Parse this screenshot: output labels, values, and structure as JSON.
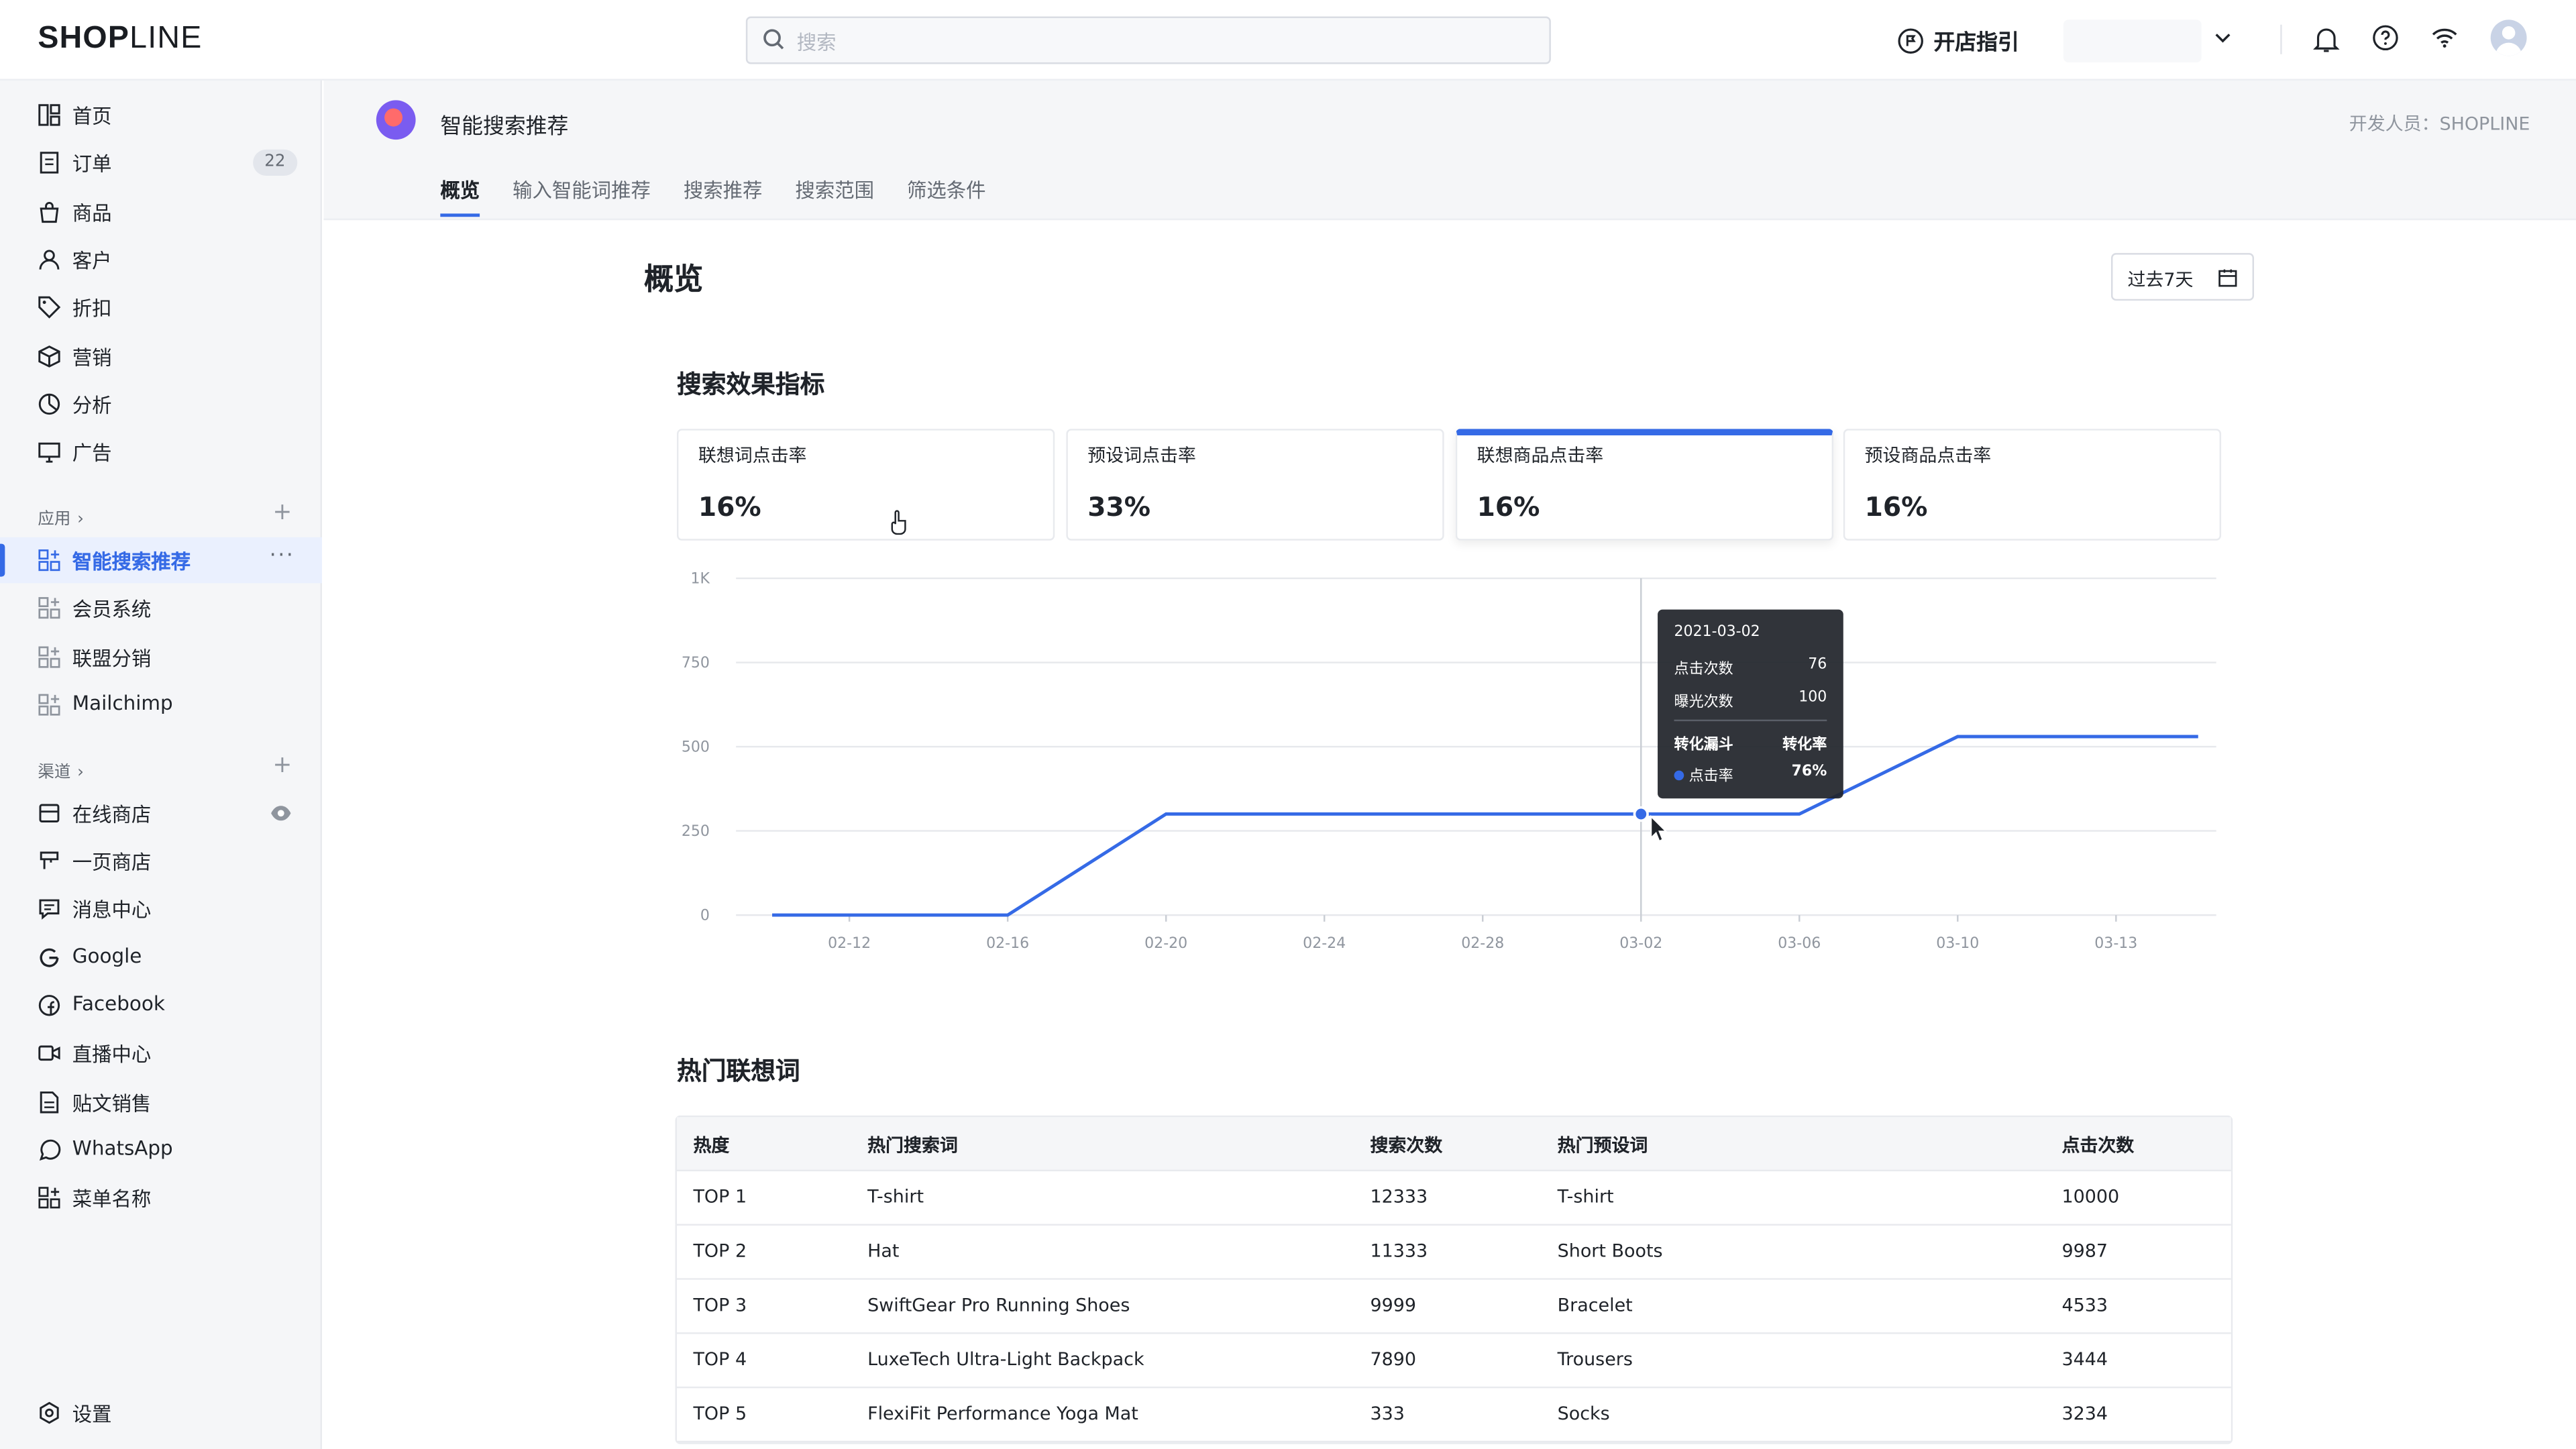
{
  "topbar": {
    "logo_bold": "SHOP",
    "logo_thin": "LINE",
    "search_placeholder": "搜索",
    "guide_label": "开店指引"
  },
  "sidebar": {
    "main_items": [
      {
        "label": "首页",
        "icon": "dashboard-icon"
      },
      {
        "label": "订单",
        "icon": "order-icon",
        "badge": "22"
      },
      {
        "label": "商品",
        "icon": "bag-icon"
      },
      {
        "label": "客户",
        "icon": "user-icon"
      },
      {
        "label": "折扣",
        "icon": "tag-icon"
      },
      {
        "label": "营销",
        "icon": "cube-icon"
      },
      {
        "label": "分析",
        "icon": "pie-icon"
      },
      {
        "label": "广告",
        "icon": "ads-icon"
      }
    ],
    "apps_section": "应用",
    "app_items": [
      {
        "label": "智能搜索推荐",
        "active": true
      },
      {
        "label": "会员系统"
      },
      {
        "label": "联盟分销"
      },
      {
        "label": "Mailchimp"
      }
    ],
    "channels_section": "渠道",
    "channel_items": [
      {
        "label": "在线商店",
        "icon": "store-icon"
      },
      {
        "label": "一页商店",
        "icon": "page-store-icon"
      },
      {
        "label": "消息中心",
        "icon": "message-icon"
      },
      {
        "label": "Google",
        "icon": "google-icon"
      },
      {
        "label": "Facebook",
        "icon": "facebook-icon"
      },
      {
        "label": "直播中心",
        "icon": "live-icon"
      },
      {
        "label": "贴文销售",
        "icon": "post-icon"
      },
      {
        "label": "WhatsApp",
        "icon": "whatsapp-icon"
      },
      {
        "label": "菜单名称",
        "icon": "grid-icon"
      }
    ],
    "settings_label": "设置"
  },
  "app_header": {
    "title": "智能搜索推荐",
    "developer": "开发人员：SHOPLINE",
    "tabs": [
      "概览",
      "输入智能词推荐",
      "搜索推荐",
      "搜索范围",
      "筛选条件"
    ],
    "active_tab": 0
  },
  "main": {
    "page_title": "概览",
    "date_range": "过去7天",
    "metrics_title": "搜索效果指标",
    "metrics": [
      {
        "label": "联想词点击率",
        "value": "16%"
      },
      {
        "label": "预设词点击率",
        "value": "33%"
      },
      {
        "label": "联想商品点击率",
        "value": "16%",
        "active": true
      },
      {
        "label": "预设商品点击率",
        "value": "16%"
      }
    ],
    "tooltip": {
      "date": "2021-03-02",
      "rows": [
        {
          "label": "点击次数",
          "value": "76"
        },
        {
          "label": "曝光次数",
          "value": "100"
        }
      ],
      "funnel_label": "转化漏斗",
      "rate_header": "转化率",
      "rate_label": "点击率",
      "rate_value": "76%"
    },
    "table_title": "热门联想词",
    "table": {
      "headers": [
        "热度",
        "热门搜索词",
        "搜索次数",
        "热门预设词",
        "点击次数"
      ],
      "rows": [
        [
          "TOP 1",
          "T-shirt",
          "12333",
          "T-shirt",
          "10000"
        ],
        [
          "TOP 2",
          "Hat",
          "11333",
          "Short Boots",
          "9987"
        ],
        [
          "TOP 3",
          "SwiftGear Pro Running Shoes",
          "9999",
          "Bracelet",
          "4533"
        ],
        [
          "TOP 4",
          "LuxeTech Ultra-Light Backpack",
          "7890",
          "Trousers",
          "3444"
        ],
        [
          "TOP 5",
          "FlexiFit Performance Yoga Mat",
          "333",
          "Socks",
          "3234"
        ]
      ]
    }
  },
  "chart_data": {
    "type": "line",
    "x_ticks": [
      "02-12",
      "02-16",
      "02-20",
      "02-24",
      "02-28",
      "03-02",
      "03-06",
      "03-10",
      "03-13"
    ],
    "y_ticks": [
      "0",
      "250",
      "500",
      "750",
      "1K"
    ],
    "ylim": [
      0,
      1000
    ],
    "series": [
      {
        "x": [
          "02-12",
          "02-16",
          "02-20",
          "02-24",
          "02-28",
          "03-02",
          "03-06",
          "03-10",
          "03-13"
        ],
        "values": [
          0,
          0,
          300,
          300,
          300,
          300,
          300,
          530,
          530
        ]
      }
    ],
    "highlight": {
      "x": "03-02",
      "y": 300
    },
    "color": "#356ae6",
    "grid": true
  }
}
